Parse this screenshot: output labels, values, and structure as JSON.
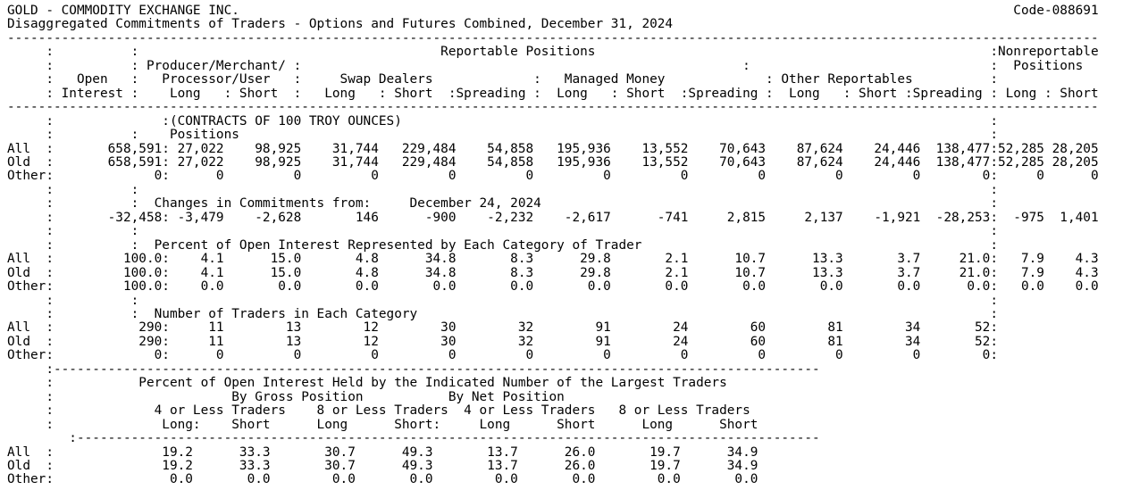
{
  "page": {
    "background": "#ffffff",
    "text_color": "#000000"
  },
  "report": {
    "title": "GOLD - COMMODITY EXCHANGE INC.",
    "code": "Code-088691",
    "subtitle": "Disaggregated Commitments of Traders - Options and Futures Combined, December 31, 2024",
    "unit_note": "(CONTRACTS OF 100 TROY OUNCES)",
    "header": {
      "reportable_title": "Reportable Positions",
      "nonreportable_title1": "Nonreportable",
      "nonreportable_title2": "Positions",
      "open1": "Open",
      "open2": "Interest",
      "producer1": "Producer/Merchant/",
      "producer2": "Processor/User",
      "swap": "Swap Dealers",
      "managed": "Managed Money",
      "other": "Other Reportables",
      "long": "Long",
      "short": "Short",
      "spreading": "Spreading"
    },
    "sections": {
      "positions": {
        "title": "Positions",
        "rows": [
          {
            "label": "All",
            "oi": "658,591",
            "values": [
              "27,022",
              "98,925",
              "31,744",
              "229,484",
              "54,858",
              "195,936",
              "13,552",
              "70,643",
              "87,624",
              "24,446",
              "138,477"
            ],
            "nr": [
              "52,285",
              "28,205"
            ]
          },
          {
            "label": "Old",
            "oi": "658,591",
            "values": [
              "27,022",
              "98,925",
              "31,744",
              "229,484",
              "54,858",
              "195,936",
              "13,552",
              "70,643",
              "87,624",
              "24,446",
              "138,477"
            ],
            "nr": [
              "52,285",
              "28,205"
            ]
          },
          {
            "label": "Other",
            "oi": "0",
            "values": [
              "0",
              "0",
              "0",
              "0",
              "0",
              "0",
              "0",
              "0",
              "0",
              "0",
              "0"
            ],
            "nr": [
              "0",
              "0"
            ]
          }
        ]
      },
      "changes": {
        "title": "Changes in Commitments from:",
        "date": "December 24, 2024",
        "row": {
          "label": "",
          "oi": "-32,458",
          "values": [
            "-3,479",
            "-2,628",
            "146",
            "-900",
            "-2,232",
            "-2,617",
            "-741",
            "2,815",
            "2,137",
            "-1,921",
            "-28,253"
          ],
          "nr": [
            "-975",
            "1,401"
          ]
        }
      },
      "percent": {
        "title": "Percent of Open Interest Represented by Each Category of Trader",
        "rows": [
          {
            "label": "All",
            "oi": "100.0",
            "values": [
              "4.1",
              "15.0",
              "4.8",
              "34.8",
              "8.3",
              "29.8",
              "2.1",
              "10.7",
              "13.3",
              "3.7",
              "21.0"
            ],
            "nr": [
              "7.9",
              "4.3"
            ]
          },
          {
            "label": "Old",
            "oi": "100.0",
            "values": [
              "4.1",
              "15.0",
              "4.8",
              "34.8",
              "8.3",
              "29.8",
              "2.1",
              "10.7",
              "13.3",
              "3.7",
              "21.0"
            ],
            "nr": [
              "7.9",
              "4.3"
            ]
          },
          {
            "label": "Other",
            "oi": "100.0",
            "values": [
              "0.0",
              "0.0",
              "0.0",
              "0.0",
              "0.0",
              "0.0",
              "0.0",
              "0.0",
              "0.0",
              "0.0",
              "0.0"
            ],
            "nr": [
              "0.0",
              "0.0"
            ]
          }
        ]
      },
      "traders": {
        "title": "Number of Traders in Each Category",
        "rows": [
          {
            "label": "All",
            "oi": "290",
            "values": [
              "11",
              "13",
              "12",
              "30",
              "32",
              "91",
              "24",
              "60",
              "81",
              "34",
              "52"
            ]
          },
          {
            "label": "Old",
            "oi": "290",
            "values": [
              "11",
              "13",
              "12",
              "30",
              "32",
              "91",
              "24",
              "60",
              "81",
              "34",
              "52"
            ]
          },
          {
            "label": "Other",
            "oi": "0",
            "values": [
              "0",
              "0",
              "0",
              "0",
              "0",
              "0",
              "0",
              "0",
              "0",
              "0",
              "0"
            ]
          }
        ]
      },
      "concentration": {
        "title": "Percent of Open Interest Held by the Indicated Number of the Largest Traders",
        "gross": "By Gross Position",
        "net": "By Net Position",
        "subheads": [
          "4 or Less Traders",
          "8 or Less Traders",
          "4 or Less Traders",
          "8 or Less Traders"
        ],
        "col_labels": [
          "Long:",
          "Short",
          "Long",
          "Short:",
          "Long",
          "Short",
          "Long",
          "Short"
        ],
        "rows": [
          {
            "label": "All",
            "values": [
              "19.2",
              "33.3",
              "30.7",
              "49.3",
              "13.7",
              "26.0",
              "19.7",
              "34.9"
            ]
          },
          {
            "label": "Old",
            "values": [
              "19.2",
              "33.3",
              "30.7",
              "49.3",
              "13.7",
              "26.0",
              "19.7",
              "34.9"
            ]
          },
          {
            "label": "Other",
            "values": [
              "0.0",
              "0.0",
              "0.0",
              "0.0",
              "0.0",
              "0.0",
              "0.0",
              "0.0"
            ]
          }
        ]
      }
    }
  }
}
